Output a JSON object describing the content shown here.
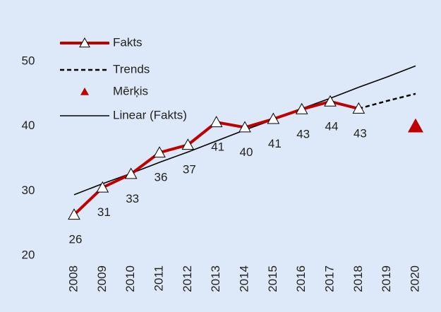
{
  "chart_data": {
    "type": "line",
    "categories": [
      "2008",
      "2009",
      "2010",
      "2011",
      "2012",
      "2013",
      "2014",
      "2015",
      "2016",
      "2017",
      "2018",
      "2019",
      "2020"
    ],
    "series": [
      {
        "name": "Fakts",
        "color": "#c00000",
        "style": "line-marker",
        "values": [
          26.3,
          30.5,
          32.6,
          35.9,
          37.1,
          40.6,
          39.8,
          41.1,
          42.6,
          43.8,
          42.7,
          null,
          null
        ],
        "value_labels": [
          "26",
          "31",
          "33",
          "36",
          "37",
          "41",
          "40",
          "41",
          "43",
          "44",
          "43",
          null,
          null
        ]
      },
      {
        "name": "Trends",
        "color": "#000000",
        "style": "dashed",
        "values": [
          null,
          null,
          null,
          null,
          null,
          null,
          null,
          null,
          null,
          null,
          42.7,
          43.9,
          45.0
        ]
      },
      {
        "name": "Mērķis",
        "color": "#c00000",
        "style": "marker",
        "values": [
          null,
          null,
          null,
          null,
          null,
          null,
          null,
          null,
          null,
          null,
          null,
          null,
          40
        ]
      },
      {
        "name": "Linear (Fakts)",
        "color": "#000000",
        "style": "line",
        "values": [
          29.4,
          31.1,
          32.7,
          34.4,
          36.0,
          37.7,
          39.4,
          41.0,
          42.7,
          44.3,
          46.0,
          47.6,
          49.3
        ]
      }
    ],
    "ylim": [
      20,
      50
    ],
    "yticks": [
      20,
      30,
      40,
      50
    ],
    "grid": false
  }
}
